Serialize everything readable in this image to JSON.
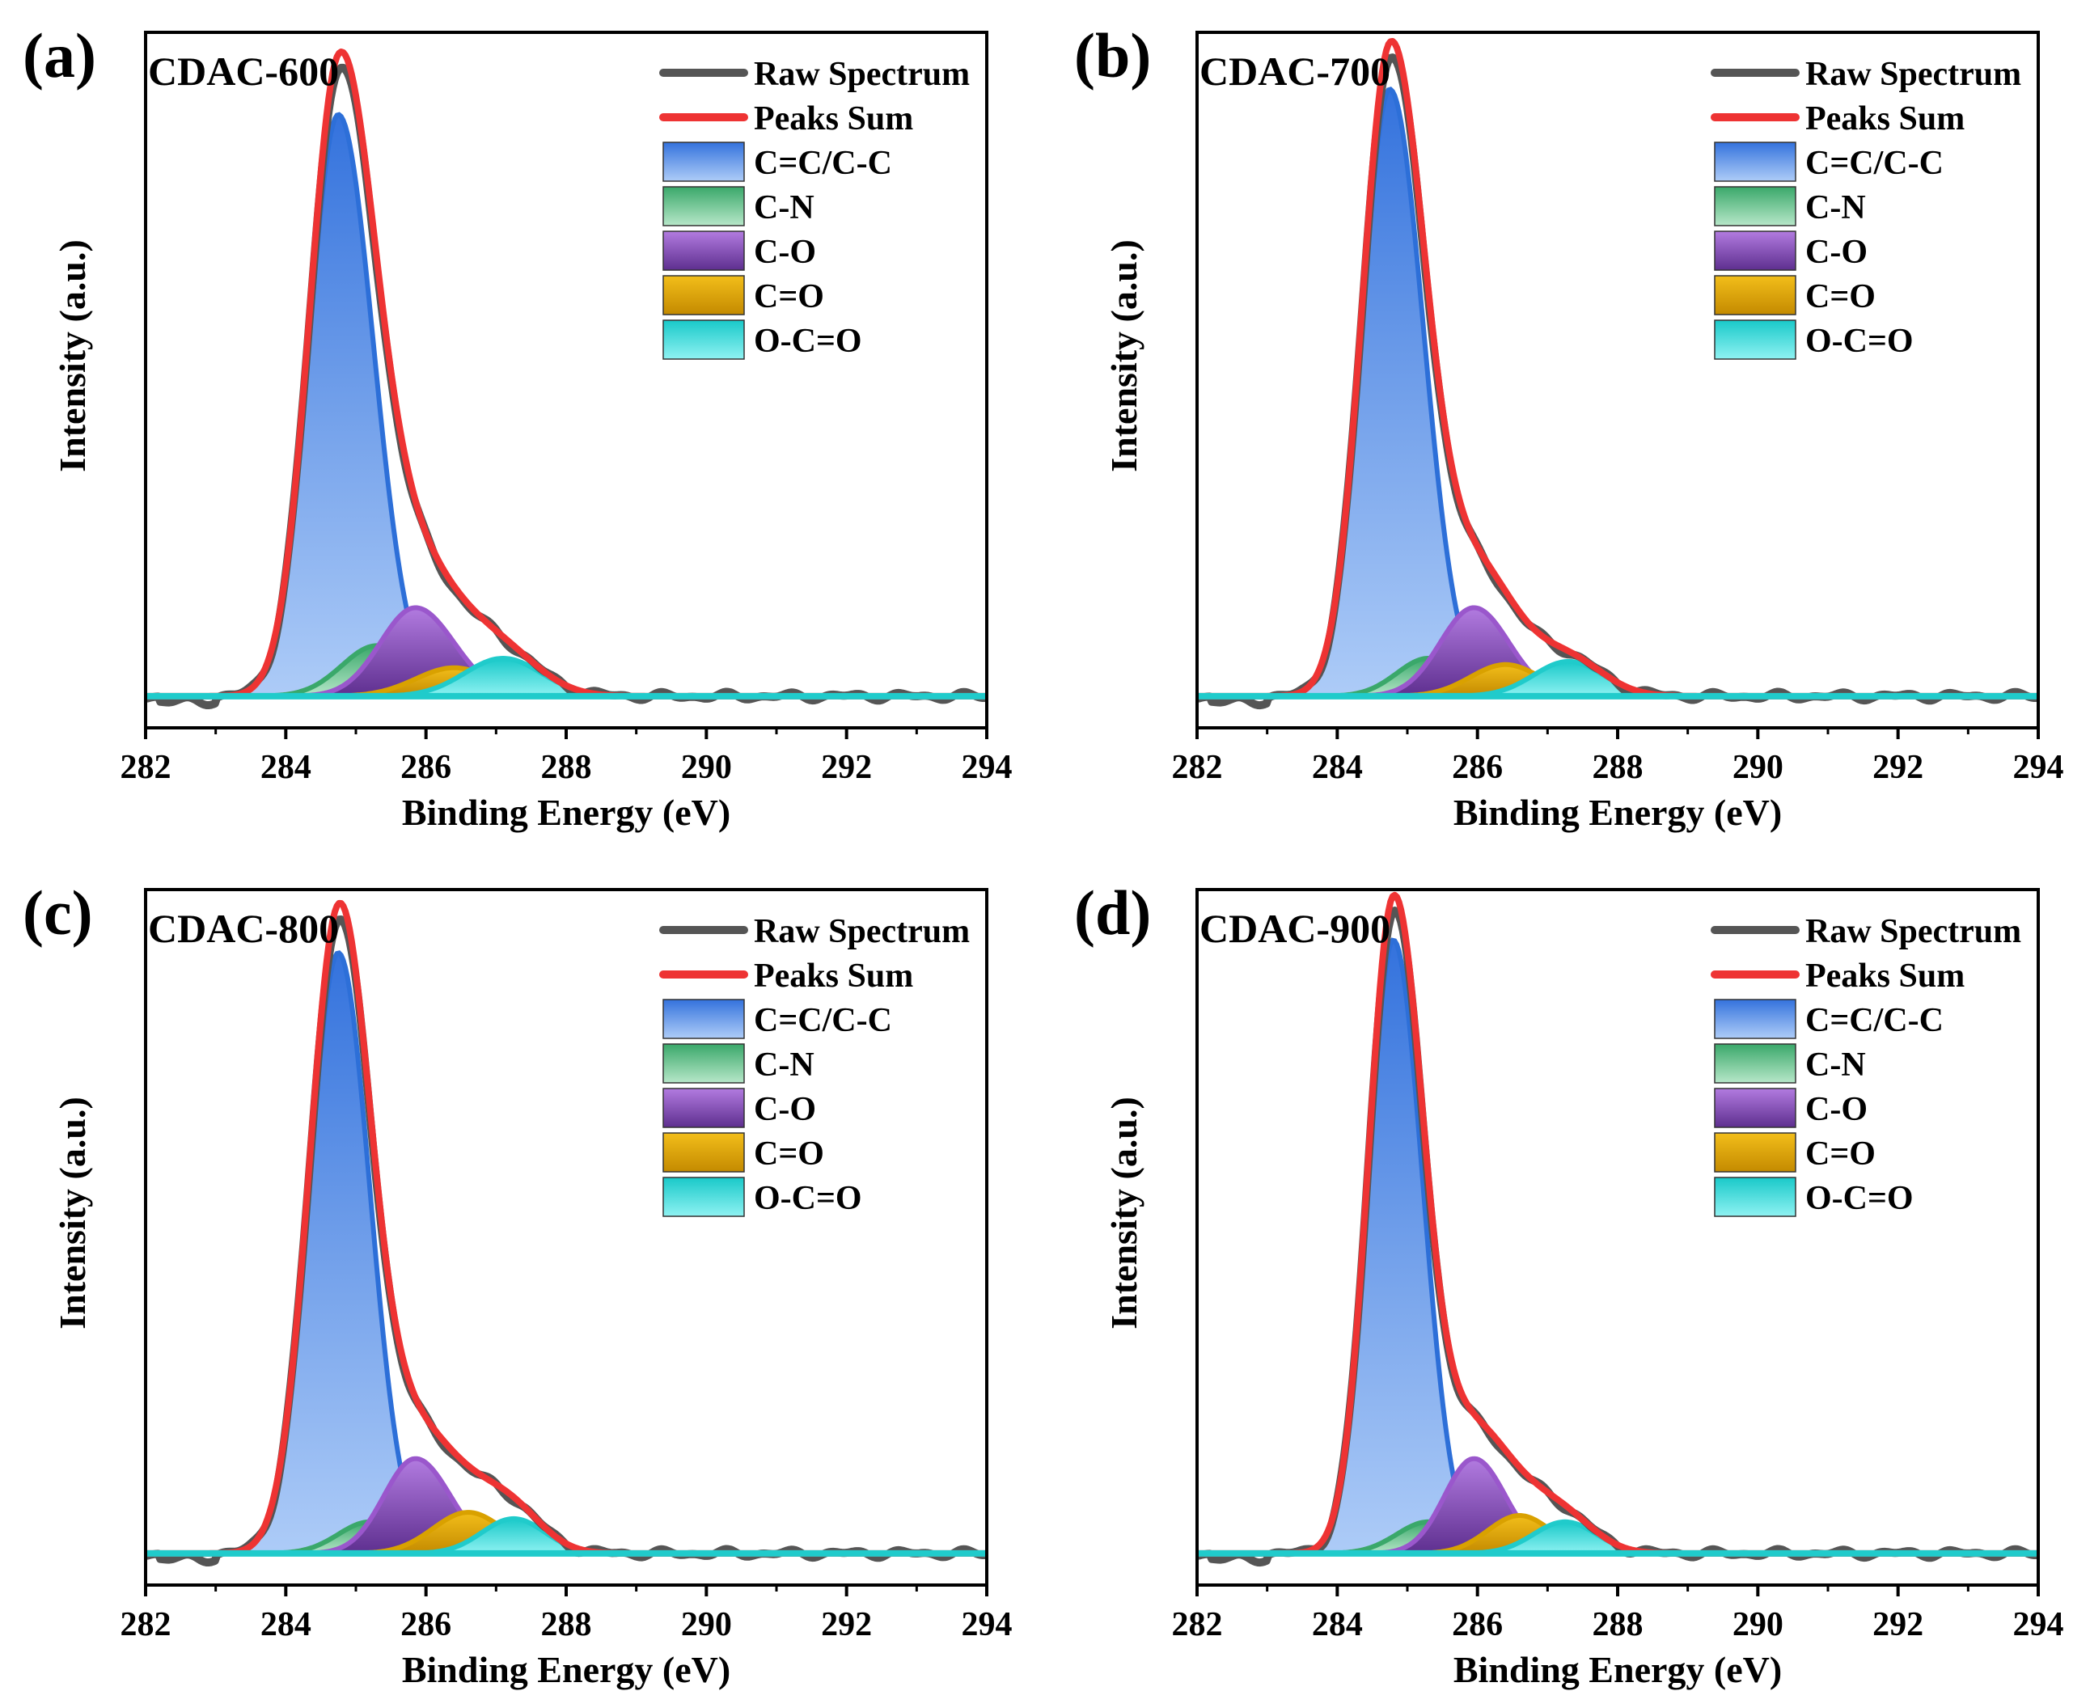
{
  "colors": {
    "raw": "#555555",
    "sum": "#ee3333",
    "C=C/C-C": "#2d6fd8",
    "C-N": "#3aa86a",
    "C-O": "#9a57cc",
    "C=O": "#d9a100",
    "O-C=O": "#20cbcb",
    "axis": "#000000"
  },
  "chart_data": [
    {
      "type": "line",
      "panel_label": "(a)",
      "sample": "CDAC-600",
      "title": "CDAC-600",
      "xlabel": "Binding Energy (eV)",
      "ylabel": "Intensity (a.u.)",
      "xlim": [
        282,
        294
      ],
      "ylim": [
        -0.05,
        1.05
      ],
      "xticks": [
        282,
        284,
        286,
        288,
        290,
        292,
        294
      ],
      "legend": [
        "Raw Spectrum",
        "Peaks Sum",
        "C=C/C-C",
        "C-N",
        "C-O",
        "C=O",
        "O-C=O"
      ],
      "legend_position": "top-right",
      "components": [
        {
          "name": "C=C/C-C",
          "center": 284.75,
          "sigma_left": 0.42,
          "sigma_right": 0.5,
          "height": 0.92
        },
        {
          "name": "C-N",
          "center": 285.3,
          "sigma_left": 0.5,
          "sigma_right": 0.5,
          "height": 0.08
        },
        {
          "name": "C-O",
          "center": 285.85,
          "sigma_left": 0.5,
          "sigma_right": 0.55,
          "height": 0.14
        },
        {
          "name": "C=O",
          "center": 286.4,
          "sigma_left": 0.55,
          "sigma_right": 0.55,
          "height": 0.045
        },
        {
          "name": "O-C=O",
          "center": 287.1,
          "sigma_left": 0.55,
          "sigma_right": 0.55,
          "height": 0.06
        }
      ],
      "series": [
        {
          "name": "Raw Spectrum",
          "x": [
            282,
            282.5,
            283,
            283.5,
            284,
            284.5,
            284.8,
            285.2,
            285.6,
            286,
            286.5,
            287,
            287.5,
            288,
            288.5,
            289,
            290,
            291,
            292,
            293,
            294
          ],
          "y": [
            0,
            -0.005,
            0.01,
            0.1,
            0.38,
            0.9,
            0.99,
            0.85,
            0.5,
            0.22,
            0.13,
            0.09,
            0.05,
            0.02,
            0.005,
            0.006,
            0,
            0.002,
            0,
            0.002,
            0
          ]
        },
        {
          "name": "Peaks Sum",
          "x": [
            282,
            282.5,
            283,
            283.5,
            284,
            284.5,
            284.8,
            285.2,
            285.6,
            286,
            286.5,
            287,
            287.5,
            288,
            288.5,
            289,
            290,
            291,
            292,
            293,
            294
          ],
          "y": [
            0,
            0,
            0.01,
            0.1,
            0.38,
            0.89,
            0.99,
            0.85,
            0.5,
            0.22,
            0.12,
            0.085,
            0.05,
            0.015,
            0.003,
            0,
            0,
            0,
            0,
            0,
            0
          ]
        }
      ]
    },
    {
      "type": "line",
      "panel_label": "(b)",
      "sample": "CDAC-700",
      "title": "CDAC-700",
      "xlabel": "Binding Energy (eV)",
      "ylabel": "Intensity (a.u.)",
      "xlim": [
        282,
        294
      ],
      "ylim": [
        -0.05,
        1.05
      ],
      "xticks": [
        282,
        284,
        286,
        288,
        290,
        292,
        294
      ],
      "legend": [
        "Raw Spectrum",
        "Peaks Sum",
        "C=C/C-C",
        "C-N",
        "C-O",
        "C=O",
        "O-C=O"
      ],
      "legend_position": "top-right",
      "components": [
        {
          "name": "C=C/C-C",
          "center": 284.75,
          "sigma_left": 0.4,
          "sigma_right": 0.48,
          "height": 0.96
        },
        {
          "name": "C-N",
          "center": 285.3,
          "sigma_left": 0.45,
          "sigma_right": 0.45,
          "height": 0.06
        },
        {
          "name": "C-O",
          "center": 285.95,
          "sigma_left": 0.48,
          "sigma_right": 0.5,
          "height": 0.14
        },
        {
          "name": "C=O",
          "center": 286.4,
          "sigma_left": 0.5,
          "sigma_right": 0.5,
          "height": 0.05
        },
        {
          "name": "O-C=O",
          "center": 287.3,
          "sigma_left": 0.5,
          "sigma_right": 0.5,
          "height": 0.055
        }
      ],
      "series": [
        {
          "name": "Raw Spectrum",
          "x": [
            282,
            282.5,
            283,
            283.5,
            284,
            284.5,
            284.8,
            285.2,
            285.6,
            286,
            286.5,
            287,
            287.5,
            288,
            288.5,
            289,
            290,
            291,
            292,
            293,
            294
          ],
          "y": [
            0,
            -0.005,
            0.005,
            0.06,
            0.3,
            0.88,
            1.0,
            0.86,
            0.48,
            0.23,
            0.14,
            0.09,
            0.05,
            0.02,
            0.006,
            0.004,
            0,
            0.002,
            0,
            0.001,
            0
          ]
        },
        {
          "name": "Peaks Sum",
          "x": [
            282,
            282.5,
            283,
            283.5,
            284,
            284.5,
            284.8,
            285.2,
            285.6,
            286,
            286.5,
            287,
            287.5,
            288,
            288.5,
            289,
            290,
            291,
            292,
            293,
            294
          ],
          "y": [
            0,
            0,
            0.005,
            0.06,
            0.3,
            0.88,
            1.0,
            0.86,
            0.48,
            0.23,
            0.13,
            0.085,
            0.05,
            0.015,
            0.003,
            0,
            0,
            0,
            0,
            0,
            0
          ]
        }
      ]
    },
    {
      "type": "line",
      "panel_label": "(c)",
      "sample": "CDAC-800",
      "title": "CDAC-800",
      "xlabel": "Binding Energy (eV)",
      "ylabel": "Intensity (a.u.)",
      "xlim": [
        282,
        294
      ],
      "ylim": [
        -0.05,
        1.05
      ],
      "xticks": [
        282,
        284,
        286,
        288,
        290,
        292,
        294
      ],
      "legend": [
        "Raw Spectrum",
        "Peaks Sum",
        "C=C/C-C",
        "C-N",
        "C-O",
        "C=O",
        "O-C=O"
      ],
      "legend_position": "top-right",
      "components": [
        {
          "name": "C=C/C-C",
          "center": 284.75,
          "sigma_left": 0.42,
          "sigma_right": 0.45,
          "height": 0.95
        },
        {
          "name": "C-N",
          "center": 285.2,
          "sigma_left": 0.45,
          "sigma_right": 0.45,
          "height": 0.05
        },
        {
          "name": "C-O",
          "center": 285.85,
          "sigma_left": 0.45,
          "sigma_right": 0.5,
          "height": 0.15
        },
        {
          "name": "C=O",
          "center": 286.6,
          "sigma_left": 0.5,
          "sigma_right": 0.5,
          "height": 0.065
        },
        {
          "name": "O-C=O",
          "center": 287.25,
          "sigma_left": 0.45,
          "sigma_right": 0.45,
          "height": 0.055
        }
      ],
      "series": [
        {
          "name": "Raw Spectrum",
          "x": [
            282,
            282.5,
            283,
            283.5,
            284,
            284.5,
            284.8,
            285.2,
            285.6,
            286,
            286.5,
            287,
            287.5,
            288,
            288.5,
            289,
            290,
            291,
            292,
            293,
            294
          ],
          "y": [
            0,
            -0.006,
            0.01,
            0.08,
            0.34,
            0.9,
            1.0,
            0.82,
            0.44,
            0.23,
            0.15,
            0.1,
            0.055,
            0.025,
            0.006,
            0.005,
            0,
            0.001,
            0,
            0.001,
            0
          ]
        },
        {
          "name": "Peaks Sum",
          "x": [
            282,
            282.5,
            283,
            283.5,
            284,
            284.5,
            284.8,
            285.2,
            285.6,
            286,
            286.5,
            287,
            287.5,
            288,
            288.5,
            289,
            290,
            291,
            292,
            293,
            294
          ],
          "y": [
            0,
            0,
            0.01,
            0.08,
            0.33,
            0.9,
            1.0,
            0.82,
            0.44,
            0.22,
            0.14,
            0.095,
            0.05,
            0.015,
            0.003,
            0,
            0,
            0,
            0,
            0,
            0
          ]
        }
      ]
    },
    {
      "type": "line",
      "panel_label": "(d)",
      "sample": "CDAC-900",
      "title": "CDAC-900",
      "xlabel": "Binding Energy (eV)",
      "ylabel": "Intensity (a.u.)",
      "xlim": [
        282,
        294
      ],
      "ylim": [
        -0.05,
        1.05
      ],
      "xticks": [
        282,
        284,
        286,
        288,
        290,
        292,
        294
      ],
      "legend": [
        "Raw Spectrum",
        "Peaks Sum",
        "C=C/C-C",
        "C-N",
        "C-O",
        "C=O",
        "O-C=O"
      ],
      "legend_position": "top-right",
      "components": [
        {
          "name": "C=C/C-C",
          "center": 284.8,
          "sigma_left": 0.36,
          "sigma_right": 0.42,
          "height": 0.97
        },
        {
          "name": "C-N",
          "center": 285.3,
          "sigma_left": 0.45,
          "sigma_right": 0.45,
          "height": 0.05
        },
        {
          "name": "C-O",
          "center": 285.95,
          "sigma_left": 0.42,
          "sigma_right": 0.45,
          "height": 0.15
        },
        {
          "name": "C=O",
          "center": 286.6,
          "sigma_left": 0.45,
          "sigma_right": 0.45,
          "height": 0.06
        },
        {
          "name": "O-C=O",
          "center": 287.25,
          "sigma_left": 0.45,
          "sigma_right": 0.45,
          "height": 0.05
        }
      ],
      "series": [
        {
          "name": "Raw Spectrum",
          "x": [
            282,
            282.5,
            283,
            283.5,
            284,
            284.5,
            284.8,
            285.2,
            285.6,
            286,
            286.5,
            287,
            287.5,
            288,
            288.5,
            289,
            290,
            291,
            292,
            293,
            294
          ],
          "y": [
            0,
            -0.006,
            0.01,
            0.06,
            0.28,
            0.88,
            1.02,
            0.8,
            0.42,
            0.24,
            0.16,
            0.1,
            0.06,
            0.035,
            0.015,
            0.01,
            0.006,
            0.004,
            0.003,
            0.002,
            0
          ]
        },
        {
          "name": "Peaks Sum",
          "x": [
            282,
            282.5,
            283,
            283.5,
            284,
            284.5,
            284.8,
            285.2,
            285.6,
            286,
            286.5,
            287,
            287.5,
            288,
            288.5,
            289,
            290,
            291,
            292,
            293,
            294
          ],
          "y": [
            0,
            0,
            0.01,
            0.06,
            0.28,
            0.88,
            1.02,
            0.8,
            0.42,
            0.24,
            0.15,
            0.095,
            0.05,
            0.015,
            0.003,
            0,
            0,
            0,
            0,
            0,
            0
          ]
        }
      ]
    }
  ]
}
